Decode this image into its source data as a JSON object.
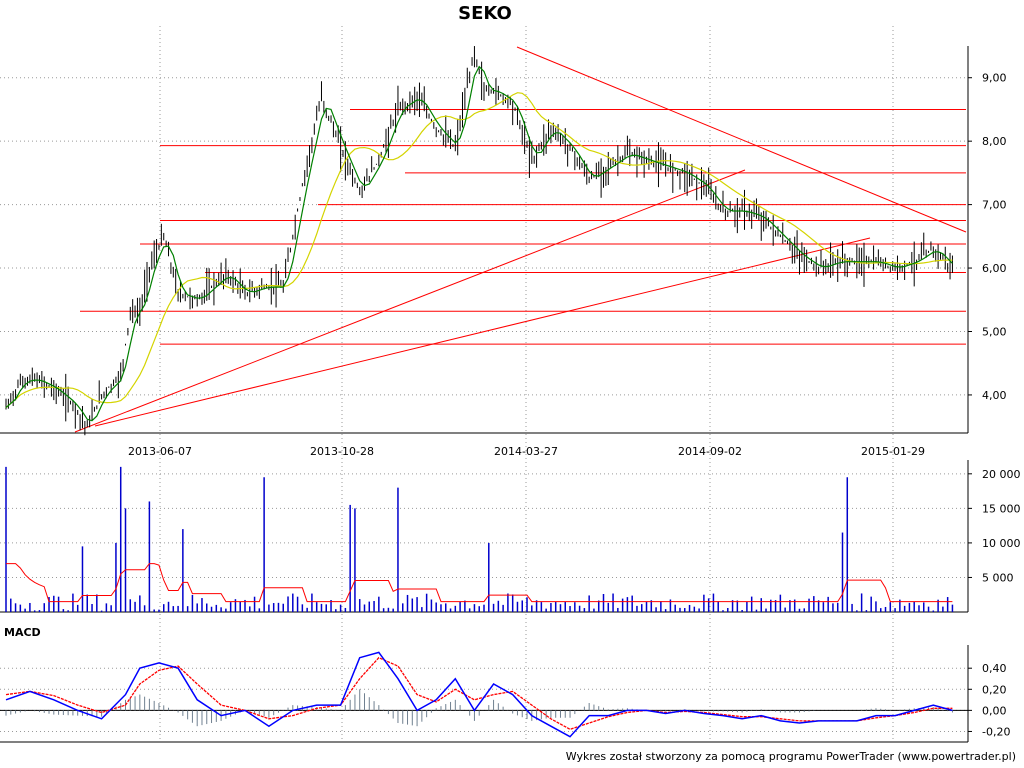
{
  "title": "SEKO",
  "footer": "Wykres został stworzony za pomocą programu PowerTrader (www.powertrader.pl)",
  "colors": {
    "price_bar": "#000000",
    "ma_short": "#008000",
    "ma_long": "#d4d400",
    "trendline": "#ff0000",
    "volume_bar": "#0000cc",
    "volume_avg": "#ff0000",
    "macd_line": "#0000ff",
    "signal_line": "#ff0000",
    "histogram": "#708090",
    "grid": "#9a9a9a"
  },
  "chart_data": [
    {
      "panel": "price",
      "type": "line",
      "title": "SEKO",
      "x_ticks": [
        "2013-06-07",
        "2013-10-28",
        "2014-03-27",
        "2014-09-02",
        "2015-01-29"
      ],
      "y_ticks": [
        "4,00",
        "5,00",
        "6,00",
        "7,00",
        "8,00",
        "9,00"
      ],
      "ylim": [
        3.4,
        9.5
      ],
      "grid": true,
      "series": [
        {
          "role": "close",
          "x": [
            0,
            3,
            6,
            10,
            14,
            17,
            20,
            24,
            26,
            28,
            30,
            33,
            36,
            40,
            43,
            46,
            50,
            54,
            58,
            62,
            66,
            70,
            74,
            78,
            82,
            86,
            90,
            94,
            98,
            100
          ],
          "y": [
            3.8,
            4.2,
            4.25,
            4.1,
            3.85,
            3.5,
            4.0,
            4.3,
            5.3,
            5.3,
            6.0,
            6.5,
            5.6,
            5.5,
            5.7,
            5.9,
            5.6,
            5.7,
            5.7,
            7.3,
            8.7,
            7.9,
            7.2,
            7.7,
            8.5,
            8.7,
            8.2,
            7.9,
            9.4,
            8.8
          ]
        },
        {
          "role": "close_cont",
          "x": [
            102,
            106,
            110,
            114,
            118,
            122,
            126,
            130,
            134,
            138,
            142,
            146,
            150,
            154,
            158,
            162,
            166,
            170,
            174,
            178,
            182,
            186,
            190,
            194,
            198
          ],
          "y": [
            8.8,
            8.6,
            7.7,
            8.2,
            7.9,
            7.4,
            7.6,
            7.8,
            7.7,
            7.6,
            7.5,
            7.3,
            6.9,
            6.9,
            6.8,
            6.5,
            6.2,
            6.0,
            6.1,
            6.1,
            6.1,
            6.0,
            6.1,
            6.3,
            6.0
          ]
        }
      ],
      "levels": [
        8.5,
        7.93,
        7.5,
        7.0,
        6.75,
        6.38,
        5.93,
        5.32,
        4.8
      ]
    },
    {
      "panel": "volume",
      "type": "bar",
      "y_ticks": [
        "5 000",
        "10 000",
        "15 000",
        "20 000"
      ],
      "ylim": [
        0,
        22000
      ],
      "spikes": [
        {
          "x": 0,
          "v": 21000
        },
        {
          "x": 16,
          "v": 9500
        },
        {
          "x": 23,
          "v": 10000
        },
        {
          "x": 24,
          "v": 21000
        },
        {
          "x": 25,
          "v": 15000
        },
        {
          "x": 30,
          "v": 16000
        },
        {
          "x": 37,
          "v": 12000
        },
        {
          "x": 54,
          "v": 19500
        },
        {
          "x": 72,
          "v": 15500
        },
        {
          "x": 73,
          "v": 15000
        },
        {
          "x": 82,
          "v": 18000
        },
        {
          "x": 101,
          "v": 10000
        },
        {
          "x": 176,
          "v": 19500
        },
        {
          "x": 175,
          "v": 11500
        }
      ]
    },
    {
      "panel": "macd",
      "type": "line",
      "title": "MACD",
      "y_ticks": [
        "-0,20",
        "0,00",
        "0,20",
        "0,40"
      ],
      "ylim": [
        -0.3,
        0.62
      ],
      "series": [
        {
          "role": "macd",
          "x": [
            0,
            5,
            10,
            15,
            20,
            25,
            28,
            32,
            36,
            40,
            45,
            50,
            55,
            60,
            65,
            70,
            74,
            78,
            82,
            86,
            90,
            94,
            98,
            102,
            106,
            110,
            114,
            118,
            122,
            126,
            130,
            134,
            138,
            142,
            146,
            150,
            154,
            158,
            162,
            166,
            170,
            174,
            178,
            182,
            186,
            190,
            194,
            198
          ],
          "y": [
            0.1,
            0.18,
            0.1,
            0.0,
            -0.08,
            0.15,
            0.4,
            0.45,
            0.4,
            0.1,
            -0.05,
            0.0,
            -0.15,
            0.0,
            0.05,
            0.05,
            0.5,
            0.55,
            0.3,
            0.0,
            0.1,
            0.3,
            0.0,
            0.25,
            0.15,
            -0.05,
            -0.15,
            -0.25,
            -0.05,
            -0.05,
            0.0,
            0.0,
            -0.03,
            -0.0,
            -0.03,
            -0.05,
            -0.08,
            -0.05,
            -0.1,
            -0.12,
            -0.1,
            -0.1,
            -0.1,
            -0.05,
            -0.05,
            0.0,
            0.05,
            0.0
          ]
        },
        {
          "role": "signal",
          "x": [
            0,
            5,
            10,
            15,
            20,
            25,
            28,
            32,
            36,
            40,
            45,
            50,
            55,
            60,
            65,
            70,
            74,
            78,
            82,
            86,
            90,
            94,
            98,
            102,
            106,
            110,
            114,
            118,
            122,
            126,
            130,
            134,
            138,
            142,
            146,
            150,
            154,
            158,
            162,
            166,
            170,
            174,
            178,
            182,
            186,
            190,
            194,
            198
          ],
          "y": [
            0.15,
            0.18,
            0.14,
            0.05,
            -0.02,
            0.05,
            0.25,
            0.38,
            0.42,
            0.25,
            0.05,
            0.0,
            -0.08,
            -0.05,
            0.02,
            0.05,
            0.3,
            0.5,
            0.42,
            0.15,
            0.08,
            0.2,
            0.1,
            0.15,
            0.18,
            0.05,
            -0.08,
            -0.18,
            -0.12,
            -0.06,
            -0.02,
            0.0,
            -0.02,
            -0.01,
            -0.02,
            -0.04,
            -0.06,
            -0.06,
            -0.08,
            -0.1,
            -0.1,
            -0.1,
            -0.1,
            -0.07,
            -0.05,
            -0.02,
            0.02,
            0.02
          ]
        }
      ]
    }
  ]
}
